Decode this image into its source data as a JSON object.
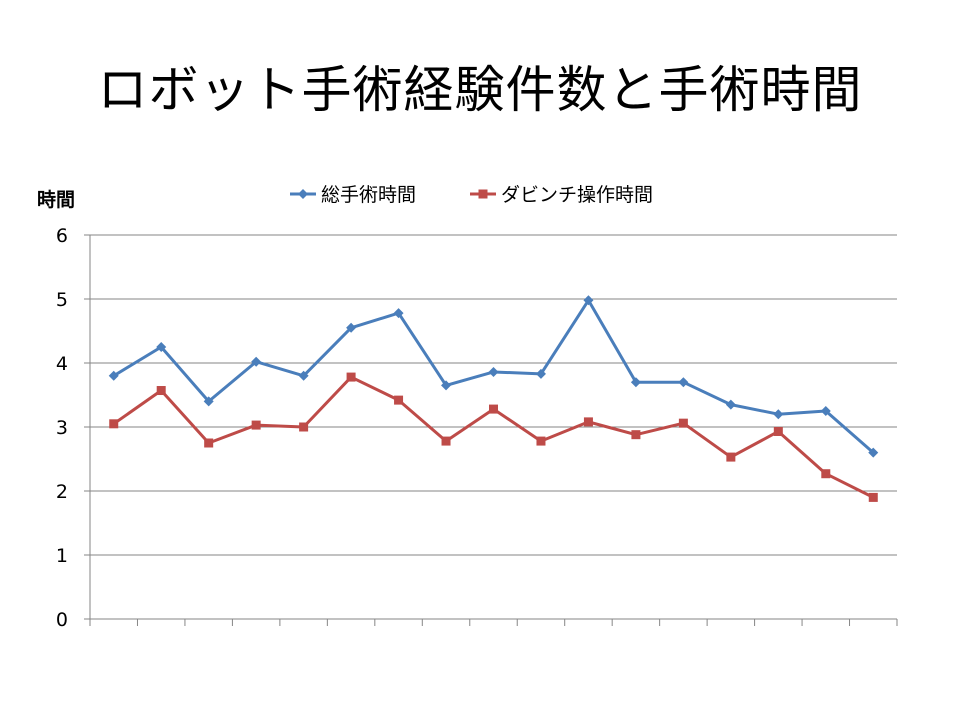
{
  "slide": {
    "title": "ロボット手術経験件数と手術時間"
  },
  "chart_data": {
    "type": "line",
    "title": "",
    "xlabel": "",
    "ylabel": "時間",
    "ylim": [
      0,
      6
    ],
    "yticks": [
      "0",
      "1",
      "2",
      "3",
      "4",
      "5",
      "6"
    ],
    "grid": true,
    "legend_position": "top",
    "x": [
      1,
      2,
      3,
      4,
      5,
      6,
      7,
      8,
      9,
      10,
      11,
      12,
      13,
      14,
      15,
      16,
      17
    ],
    "series": [
      {
        "name": "総手術時間",
        "color": "#4a7ebb",
        "marker": "diamond",
        "values": [
          3.8,
          4.25,
          3.4,
          4.02,
          3.8,
          4.55,
          4.78,
          3.65,
          3.86,
          3.83,
          4.98,
          3.7,
          3.7,
          3.35,
          3.2,
          3.25,
          2.6
        ]
      },
      {
        "name": "ダビンチ操作時間",
        "color": "#be4b48",
        "marker": "square",
        "values": [
          3.05,
          3.57,
          2.75,
          3.03,
          3.0,
          3.78,
          3.42,
          2.78,
          3.28,
          2.78,
          3.08,
          2.88,
          3.06,
          2.53,
          2.93,
          2.27,
          1.9
        ]
      }
    ]
  }
}
